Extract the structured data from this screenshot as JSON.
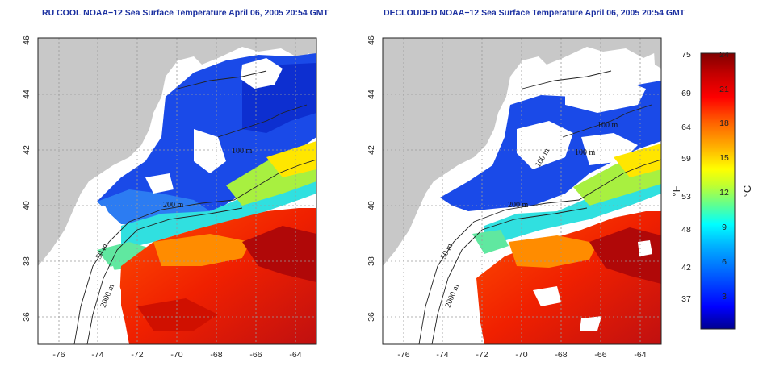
{
  "panels": [
    {
      "title": "RU COOL NOAA−12 Sea Surface Temperature April 06, 2005 20:54 GMT",
      "x_ticks": [
        "-76",
        "-74",
        "-72",
        "-70",
        "-68",
        "-66",
        "-64"
      ],
      "y_ticks": [
        "36",
        "38",
        "40",
        "42",
        "44",
        "46"
      ],
      "contour_labels": [
        "200 m",
        "100 m",
        "50 m",
        "2000 m"
      ]
    },
    {
      "title": "DECLOUDED NOAA−12 Sea Surface Temperature April 06, 2005 20:54 GMT",
      "x_ticks": [
        "-76",
        "-74",
        "-72",
        "-70",
        "-68",
        "-66",
        "-64"
      ],
      "y_ticks": [
        "36",
        "38",
        "40",
        "42",
        "44",
        "46"
      ],
      "contour_labels": [
        "200 m",
        "100 m",
        "100 m",
        "100 m",
        "50 m",
        "2000 m"
      ]
    }
  ],
  "colorbar": {
    "fahrenheit_ticks": [
      "75",
      "69",
      "64",
      "59",
      "53",
      "48",
      "42",
      "37"
    ],
    "celsius_ticks": [
      "24",
      "21",
      "18",
      "15",
      "12",
      "9",
      "6",
      "3"
    ],
    "fahrenheit_label": "°F",
    "celsius_label": "°C",
    "colors": [
      "#00008f",
      "#0000ff",
      "#0060ff",
      "#00b0ff",
      "#00ffff",
      "#60ff90",
      "#c0ff30",
      "#ffff00",
      "#ffb000",
      "#ff6000",
      "#ff0000",
      "#c00000",
      "#800000"
    ]
  },
  "map": {
    "land_color": "#c8c8c8",
    "cloud_color": "#ffffff",
    "lon_range": [
      -77,
      -63
    ],
    "lat_range": [
      35,
      46
    ]
  }
}
